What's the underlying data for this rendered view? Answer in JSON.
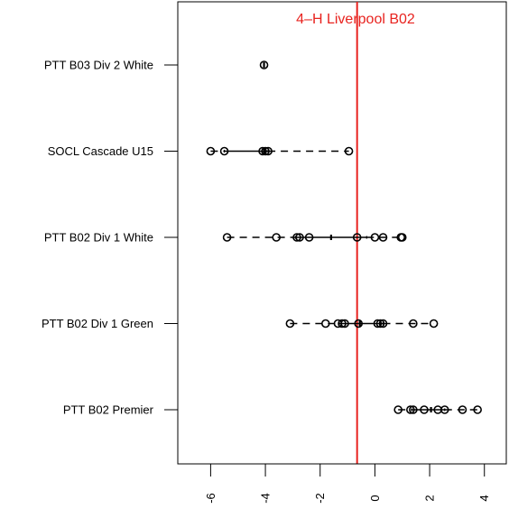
{
  "chart_data": {
    "type": "boxplot",
    "title": "4–H Liverpool B02",
    "title_color": "#e8231f",
    "reference_line": {
      "value": -0.65,
      "color": "#e8231f"
    },
    "xlim": [
      -7.2,
      4.8
    ],
    "x_ticks": [
      -6,
      -4,
      -2,
      0,
      2,
      4
    ],
    "x_tick_labels": [
      "-6",
      "-4",
      "-2",
      "0",
      "2",
      "4"
    ],
    "categories": [
      "PTT B03 Div 2 White",
      "SOCL Cascade U15",
      "PTT B02 Div 1 White",
      "PTT B02 Div 1 Green",
      "PTT B02 Premier"
    ],
    "series": [
      {
        "category": "PTT B03 Div 2 White",
        "points": [
          -4.05
        ],
        "box": {
          "q1": -4.05,
          "median": -4.05,
          "q3": -4.05
        },
        "whisker": [
          -4.05,
          -4.05
        ]
      },
      {
        "category": "SOCL Cascade U15",
        "points": [
          -6.0,
          -5.5,
          -4.1,
          -4.0,
          -3.9,
          -0.95
        ],
        "box": {
          "q1": -5.5,
          "median": -4.05,
          "q3": -3.9
        },
        "whisker": [
          -6.0,
          -0.95
        ]
      },
      {
        "category": "PTT B02 Div 1 White",
        "points": [
          -5.4,
          -3.6,
          -2.85,
          -2.75,
          -2.4,
          -0.65,
          0.0,
          0.3,
          0.95,
          1.0
        ],
        "box": {
          "q1": -2.9,
          "median": -1.6,
          "q3": -0.3
        },
        "whisker": [
          -5.4,
          1.0
        ]
      },
      {
        "category": "PTT B02 Div 1 Green",
        "points": [
          -3.1,
          -1.8,
          -1.35,
          -1.2,
          -1.1,
          -0.6,
          0.1,
          0.2,
          0.3,
          1.4,
          2.15
        ],
        "box": {
          "q1": -1.3,
          "median": -0.55,
          "q3": 0.3
        },
        "whisker": [
          -3.1,
          2.15
        ]
      },
      {
        "category": "PTT B02 Premier",
        "points": [
          0.85,
          1.3,
          1.4,
          1.8,
          2.3,
          2.55,
          3.2,
          3.75
        ],
        "box": {
          "q1": 1.35,
          "median": 2.05,
          "q3": 2.55
        },
        "whisker": [
          0.85,
          3.75
        ]
      }
    ]
  }
}
